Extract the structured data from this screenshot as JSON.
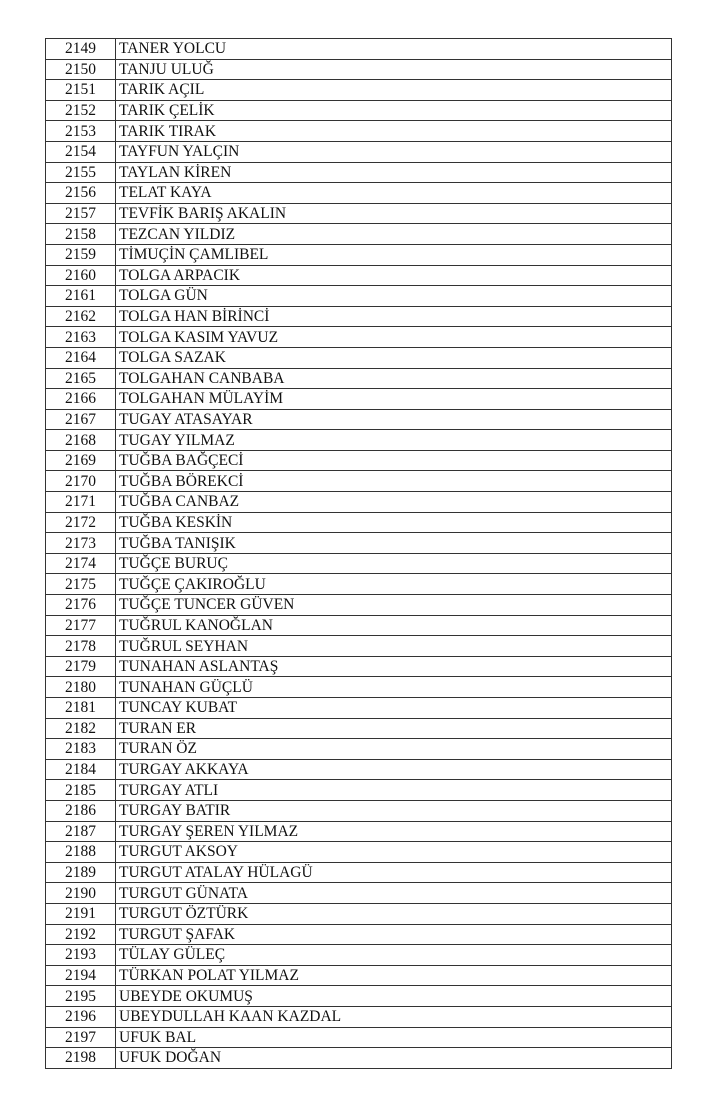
{
  "rows": [
    {
      "no": "2149",
      "name": "TANER YOLCU"
    },
    {
      "no": "2150",
      "name": "TANJU ULUĞ"
    },
    {
      "no": "2151",
      "name": "TARIK AÇIL"
    },
    {
      "no": "2152",
      "name": "TARIK ÇELİK"
    },
    {
      "no": "2153",
      "name": "TARIK TIRAK"
    },
    {
      "no": "2154",
      "name": "TAYFUN YALÇIN"
    },
    {
      "no": "2155",
      "name": "TAYLAN KİREN"
    },
    {
      "no": "2156",
      "name": "TELAT KAYA"
    },
    {
      "no": "2157",
      "name": "TEVFİK BARIŞ AKALIN"
    },
    {
      "no": "2158",
      "name": "TEZCAN YILDIZ"
    },
    {
      "no": "2159",
      "name": "TİMUÇİN ÇAMLIBEL"
    },
    {
      "no": "2160",
      "name": "TOLGA ARPACIK"
    },
    {
      "no": "2161",
      "name": "TOLGA GÜN"
    },
    {
      "no": "2162",
      "name": "TOLGA HAN BİRİNCİ"
    },
    {
      "no": "2163",
      "name": "TOLGA KASIM YAVUZ"
    },
    {
      "no": "2164",
      "name": "TOLGA SAZAK"
    },
    {
      "no": "2165",
      "name": "TOLGAHAN CANBABA"
    },
    {
      "no": "2166",
      "name": "TOLGAHAN MÜLAYİM"
    },
    {
      "no": "2167",
      "name": "TUGAY ATASAYAR"
    },
    {
      "no": "2168",
      "name": "TUGAY YILMAZ"
    },
    {
      "no": "2169",
      "name": "TUĞBA BAĞÇECİ"
    },
    {
      "no": "2170",
      "name": "TUĞBA BÖREKCİ"
    },
    {
      "no": "2171",
      "name": "TUĞBA CANBAZ"
    },
    {
      "no": "2172",
      "name": "TUĞBA KESKİN"
    },
    {
      "no": "2173",
      "name": "TUĞBA TANIŞIK"
    },
    {
      "no": "2174",
      "name": "TUĞÇE BURUÇ"
    },
    {
      "no": "2175",
      "name": "TUĞÇE ÇAKIROĞLU"
    },
    {
      "no": "2176",
      "name": "TUĞÇE TUNCER GÜVEN"
    },
    {
      "no": "2177",
      "name": "TUĞRUL KANOĞLAN"
    },
    {
      "no": "2178",
      "name": "TUĞRUL SEYHAN"
    },
    {
      "no": "2179",
      "name": "TUNAHAN ASLANTAŞ"
    },
    {
      "no": "2180",
      "name": "TUNAHAN GÜÇLÜ"
    },
    {
      "no": "2181",
      "name": "TUNCAY KUBAT"
    },
    {
      "no": "2182",
      "name": "TURAN ER"
    },
    {
      "no": "2183",
      "name": "TURAN ÖZ"
    },
    {
      "no": "2184",
      "name": "TURGAY AKKAYA"
    },
    {
      "no": "2185",
      "name": "TURGAY ATLI"
    },
    {
      "no": "2186",
      "name": "TURGAY BATIR"
    },
    {
      "no": "2187",
      "name": "TURGAY ŞEREN YILMAZ"
    },
    {
      "no": "2188",
      "name": "TURGUT AKSOY"
    },
    {
      "no": "2189",
      "name": "TURGUT ATALAY HÜLAGÜ"
    },
    {
      "no": "2190",
      "name": "TURGUT GÜNATA"
    },
    {
      "no": "2191",
      "name": "TURGUT ÖZTÜRK"
    },
    {
      "no": "2192",
      "name": "TURGUT ŞAFAK"
    },
    {
      "no": "2193",
      "name": "TÜLAY GÜLEÇ"
    },
    {
      "no": "2194",
      "name": "TÜRKAN POLAT YILMAZ"
    },
    {
      "no": "2195",
      "name": "UBEYDE OKUMUŞ"
    },
    {
      "no": "2196",
      "name": "UBEYDULLAH KAAN KAZDAL"
    },
    {
      "no": "2197",
      "name": "UFUK BAL"
    },
    {
      "no": "2198",
      "name": "UFUK DOĞAN"
    }
  ]
}
